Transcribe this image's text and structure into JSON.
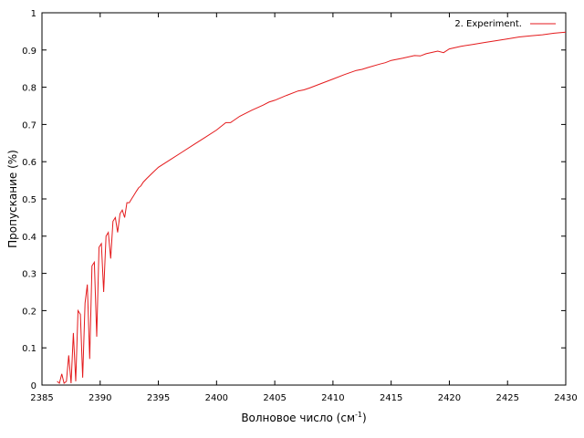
{
  "chart_data": {
    "type": "line",
    "xlabel_main": "Волновое число (см",
    "xlabel_sup": "-1",
    "xlabel_close": ")",
    "ylabel": "Пропускание (%)",
    "xlim": [
      2385,
      2430
    ],
    "ylim": [
      0,
      1
    ],
    "x_ticks": [
      "2385",
      "2390",
      "2395",
      "2400",
      "2405",
      "2410",
      "2415",
      "2420",
      "2425",
      "2430"
    ],
    "y_ticks": [
      "0",
      "0.1",
      "0.2",
      "0.3",
      "0.4",
      "0.5",
      "0.6",
      "0.7",
      "0.8",
      "0.9",
      "1"
    ],
    "grid": false,
    "legend_position": "top-right",
    "series": [
      {
        "name": "2. Experiment.",
        "color": "#e41a1c",
        "x": [
          2386.3,
          2386.5,
          2386.7,
          2386.9,
          2387.1,
          2387.3,
          2387.5,
          2387.7,
          2387.9,
          2388.1,
          2388.3,
          2388.5,
          2388.7,
          2388.9,
          2389.1,
          2389.3,
          2389.5,
          2389.7,
          2389.9,
          2390.1,
          2390.3,
          2390.5,
          2390.7,
          2390.9,
          2391.1,
          2391.3,
          2391.5,
          2391.7,
          2391.9,
          2392.1,
          2392.3,
          2392.5,
          2392.7,
          2392.9,
          2393.1,
          2393.3,
          2393.5,
          2393.7,
          2394.0,
          2394.5,
          2395.0,
          2396.0,
          2397.0,
          2398.0,
          2399.0,
          2400.0,
          2400.8,
          2401.2,
          2402.0,
          2403.0,
          2404.0,
          2404.5,
          2405.0,
          2406.0,
          2407.0,
          2407.5,
          2408.0,
          2409.0,
          2410.0,
          2411.0,
          2412.0,
          2412.5,
          2413.0,
          2414.0,
          2414.5,
          2415.0,
          2416.0,
          2417.0,
          2417.5,
          2418.0,
          2419.0,
          2419.5,
          2420.0,
          2421.0,
          2422.0,
          2423.0,
          2424.0,
          2425.0,
          2426.0,
          2427.0,
          2428.0,
          2429.0,
          2430.0
        ],
        "y": [
          0.01,
          0.005,
          0.03,
          0.005,
          0.01,
          0.08,
          0.005,
          0.14,
          0.01,
          0.2,
          0.19,
          0.02,
          0.22,
          0.27,
          0.07,
          0.32,
          0.33,
          0.13,
          0.37,
          0.38,
          0.25,
          0.4,
          0.41,
          0.34,
          0.44,
          0.45,
          0.41,
          0.46,
          0.47,
          0.45,
          0.49,
          0.49,
          0.5,
          0.51,
          0.52,
          0.53,
          0.535,
          0.545,
          0.555,
          0.57,
          0.585,
          0.605,
          0.625,
          0.645,
          0.665,
          0.685,
          0.705,
          0.705,
          0.722,
          0.738,
          0.752,
          0.76,
          0.765,
          0.778,
          0.79,
          0.793,
          0.798,
          0.81,
          0.822,
          0.834,
          0.845,
          0.848,
          0.853,
          0.862,
          0.866,
          0.872,
          0.878,
          0.885,
          0.884,
          0.89,
          0.897,
          0.893,
          0.903,
          0.91,
          0.915,
          0.92,
          0.925,
          0.93,
          0.935,
          0.938,
          0.941,
          0.945,
          0.948
        ]
      }
    ]
  }
}
